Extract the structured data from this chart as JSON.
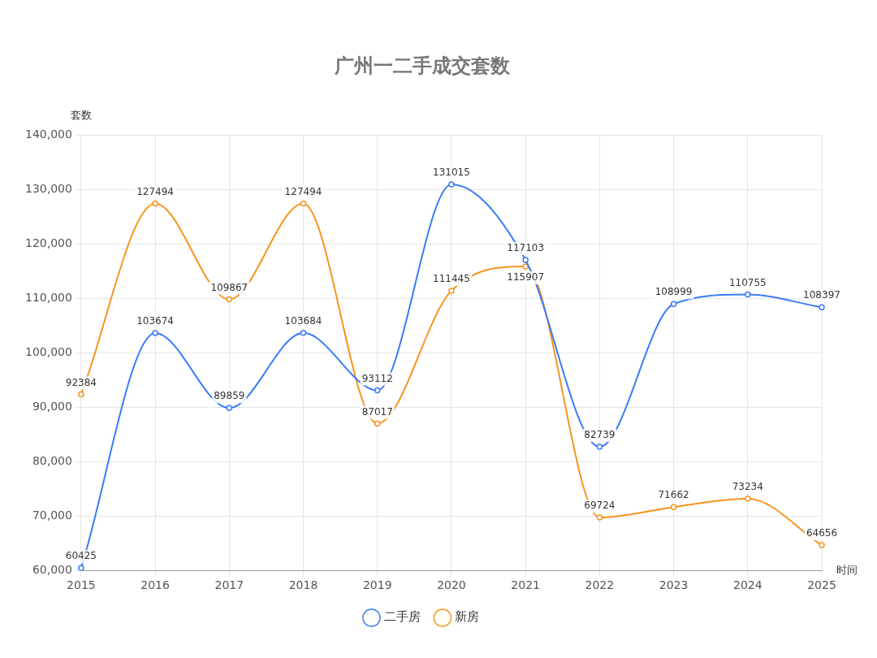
{
  "chart_data": {
    "type": "line",
    "title": "广州一二手成交套数",
    "xlabel": "时间",
    "ylabel": "套数",
    "categories": [
      "2015",
      "2016",
      "2017",
      "2018",
      "2019",
      "2020",
      "2021",
      "2022",
      "2023",
      "2024",
      "2025"
    ],
    "series": [
      {
        "name": "二手房",
        "color": "#3a7bfa",
        "values": [
          60425,
          103674,
          89859,
          103684,
          93112,
          131015,
          117103,
          82739,
          108999,
          110755,
          108397
        ]
      },
      {
        "name": "新房",
        "color": "#f7941d",
        "values": [
          92384,
          127494,
          109867,
          127494,
          87017,
          111445,
          115907,
          69724,
          71662,
          73234,
          64656
        ]
      }
    ],
    "ylim": [
      60000,
      140000
    ],
    "yticks": [
      {
        "value": 60000,
        "label": "60,000"
      },
      {
        "value": 70000,
        "label": "70,000"
      },
      {
        "value": 80000,
        "label": "80,000"
      },
      {
        "value": 90000,
        "label": "90,000"
      },
      {
        "value": 100000,
        "label": "100,000"
      },
      {
        "value": 110000,
        "label": "110,000"
      },
      {
        "value": 120000,
        "label": "120,000"
      },
      {
        "value": 130000,
        "label": "130,000"
      },
      {
        "value": 140000,
        "label": "140,000"
      }
    ],
    "grid": true,
    "legend": "bottom",
    "marker": "circle",
    "line_style": "solid",
    "data_labels": true
  }
}
